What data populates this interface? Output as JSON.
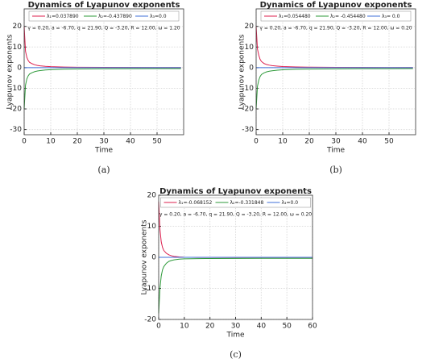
{
  "chart_data": [
    {
      "type": "line",
      "title": "Dynamics of Lyapunov exponents",
      "subtitle": "γ = 0.20, a = -6.70, q = 21.90, Q = -3.20, R = 12.00, ω = 1.20",
      "x_label": "Time",
      "y_label": "Lyapunov exponents",
      "panel_label": "(a)",
      "x": [
        0,
        0.5,
        1,
        1.5,
        2,
        3,
        4,
        5,
        6,
        8,
        10,
        15,
        20,
        30,
        40,
        50,
        59
      ],
      "series": [
        {
          "name": "λ₁=0.037890",
          "color": "#dc1f4e",
          "values": [
            20,
            8,
            5,
            3.5,
            2.6,
            1.9,
            1.4,
            1.1,
            0.9,
            0.65,
            0.5,
            0.32,
            0.22,
            0.13,
            0.09,
            0.06,
            0.04
          ]
        },
        {
          "name": "λ₂=-0.437890",
          "color": "#2e9a3a",
          "values": [
            -20,
            -8.5,
            -5.5,
            -4,
            -3.1,
            -2.4,
            -1.9,
            -1.6,
            -1.4,
            -1.1,
            -0.95,
            -0.75,
            -0.65,
            -0.55,
            -0.5,
            -0.46,
            -0.44
          ]
        },
        {
          "name": "λ₃=0.0",
          "color": "#3f6fd8",
          "values": [
            0,
            0,
            0,
            0,
            0,
            0,
            0,
            0,
            0,
            0,
            0,
            0,
            0,
            0,
            0,
            0,
            0
          ]
        }
      ],
      "xlim": [
        0,
        60
      ],
      "ylim": [
        -32.5,
        28.5
      ],
      "xticks": [
        0,
        10,
        20,
        30,
        40,
        50
      ],
      "yticks": [
        -30,
        -20,
        -10,
        0,
        10,
        20
      ],
      "grid": true
    },
    {
      "type": "line",
      "title": "Dynamics of Lyapunov exponents",
      "subtitle": "γ = 0.20, a = -6.70, q = 21.90, Q = -3.20, R = 12.00, ω = 0.20",
      "x_label": "Time",
      "y_label": "Lyapunov exponents",
      "panel_label": "(b)",
      "x": [
        0,
        0.5,
        1,
        1.5,
        2,
        3,
        4,
        5,
        6,
        8,
        10,
        15,
        20,
        30,
        40,
        50,
        59
      ],
      "series": [
        {
          "name": "λ₁=0.054480",
          "color": "#dc1f4e",
          "values": [
            20,
            9,
            6,
            4,
            3,
            2,
            1.5,
            1.2,
            1,
            0.75,
            0.55,
            0.35,
            0.25,
            0.15,
            0.1,
            0.07,
            0.05
          ]
        },
        {
          "name": "λ₂= -0.454480",
          "color": "#2e9a3a",
          "values": [
            -20,
            -9,
            -6,
            -4.3,
            -3.3,
            -2.5,
            -2,
            -1.7,
            -1.5,
            -1.2,
            -1,
            -0.8,
            -0.68,
            -0.57,
            -0.5,
            -0.47,
            -0.45
          ]
        },
        {
          "name": "λ₃= 0.0",
          "color": "#3f6fd8",
          "values": [
            0,
            0,
            0,
            0,
            0,
            0,
            0,
            0,
            0,
            0,
            0,
            0,
            0,
            0,
            0,
            0,
            0
          ]
        }
      ],
      "xlim": [
        0,
        60
      ],
      "ylim": [
        -32.5,
        28.5
      ],
      "xticks": [
        0,
        10,
        20,
        30,
        40,
        50
      ],
      "yticks": [
        -30,
        -20,
        -10,
        0,
        10,
        20
      ],
      "grid": true
    },
    {
      "type": "line",
      "title": "Dynamics of Lyapunov exponents",
      "subtitle": "γ = 0.20, a = -6.70, q = 21.90, Q = -3.20, R = 12.00, ω = 0.20",
      "x_label": "Time",
      "y_label": "Lyapunov exponents",
      "panel_label": "(c)",
      "x": [
        0,
        0.5,
        1,
        1.5,
        2,
        3,
        4,
        5,
        6,
        8,
        10,
        15,
        20,
        30,
        40,
        50,
        60
      ],
      "series": [
        {
          "name": "λ₁=-0.068152",
          "color": "#dc1f4e",
          "values": [
            18,
            9,
            5,
            3.2,
            2.2,
            1.3,
            0.8,
            0.5,
            0.3,
            0.12,
            0.03,
            -0.02,
            -0.04,
            -0.05,
            -0.06,
            -0.065,
            -0.068
          ]
        },
        {
          "name": "λ₂=-0.331848",
          "color": "#2e9a3a",
          "values": [
            -18,
            -10,
            -6,
            -4,
            -3,
            -1.9,
            -1.3,
            -1,
            -0.8,
            -0.6,
            -0.5,
            -0.42,
            -0.38,
            -0.35,
            -0.34,
            -0.335,
            -0.33
          ]
        },
        {
          "name": "λ₃=0.0",
          "color": "#3f6fd8",
          "values": [
            0,
            0,
            0,
            0,
            0,
            0,
            0,
            0,
            0,
            0,
            0,
            0,
            0,
            0,
            0,
            0,
            0
          ]
        }
      ],
      "xlim": [
        0,
        60
      ],
      "ylim": [
        -20,
        20
      ],
      "xticks": [
        0,
        10,
        20,
        30,
        40,
        50,
        60
      ],
      "yticks": [
        -20,
        -10,
        0,
        10,
        20
      ],
      "grid": true
    }
  ]
}
